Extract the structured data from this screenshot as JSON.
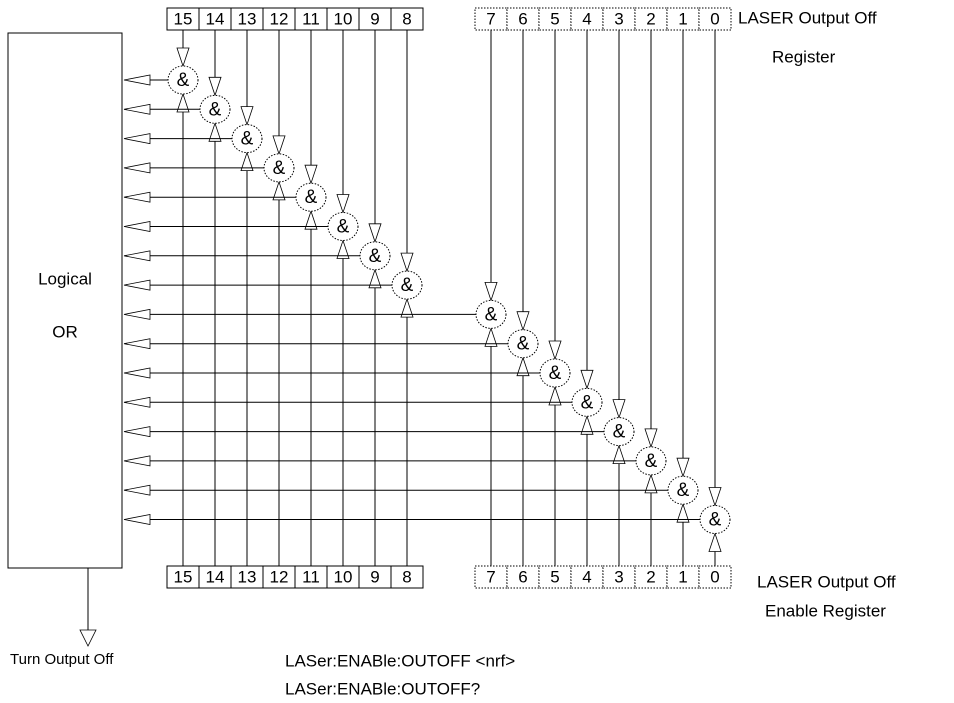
{
  "status_register": {
    "bits": [
      "15",
      "14",
      "13",
      "12",
      "11",
      "10",
      "9",
      "8",
      "7",
      "6",
      "5",
      "4",
      "3",
      "2",
      "1",
      "0"
    ],
    "label": [
      "LASER Output Off",
      "Register"
    ]
  },
  "enable_register": {
    "bits": [
      "15",
      "14",
      "13",
      "12",
      "11",
      "10",
      "9",
      "8",
      "7",
      "6",
      "5",
      "4",
      "3",
      "2",
      "1",
      "0"
    ],
    "label": [
      "LASER Output Off",
      "Enable Register"
    ]
  },
  "or_block": {
    "label": [
      "Logical",
      "OR"
    ]
  },
  "gates": [
    "&",
    "&",
    "&",
    "&",
    "&",
    "&",
    "&",
    "&",
    "&",
    "&",
    "&",
    "&",
    "&",
    "&",
    "&",
    "&"
  ],
  "output": "Turn Output Off",
  "commands": [
    "LASer:ENABle:OUTOFF <nrf>",
    "LASer:ENABle:OUTOFF?"
  ]
}
